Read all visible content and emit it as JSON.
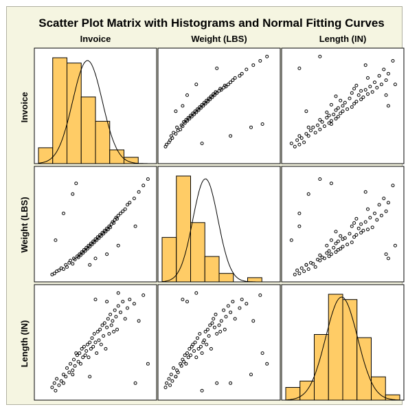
{
  "chart_data": {
    "type": "scatter",
    "title": "Scatter Plot Matrix with Histograms and Normal Fitting Curves",
    "variables": [
      "Invoice",
      "Weight (LBS)",
      "Length (IN)"
    ],
    "ranges": {
      "Invoice": [
        0,
        100
      ],
      "Weight (LBS)": [
        0,
        100
      ],
      "Length (IN)": [
        0,
        100
      ]
    },
    "colors": {
      "bar_fill": "#ffcc66",
      "bar_stroke": "#000000",
      "curve": "#000000",
      "point_stroke": "#000000",
      "background": "#f5f5e1"
    },
    "histograms": {
      "Invoice": {
        "bins": 8,
        "heights": [
          15,
          100,
          95,
          63,
          40,
          13,
          6,
          0
        ],
        "normal_mean": 43,
        "normal_sd": 13
      },
      "Weight (LBS)": {
        "bins": 8,
        "heights": [
          42,
          100,
          56,
          24,
          8,
          0,
          4,
          0
        ],
        "normal_mean": 38,
        "normal_sd": 11
      },
      "Length (IN)": {
        "bins": 8,
        "heights": [
          12,
          18,
          62,
          100,
          95,
          59,
          22,
          5
        ],
        "normal_mean": 49,
        "normal_sd": 14
      }
    },
    "points": [
      [
        12,
        3,
        8
      ],
      [
        14,
        4,
        12
      ],
      [
        16,
        6,
        16
      ],
      [
        18,
        7,
        10
      ],
      [
        20,
        9,
        14
      ],
      [
        22,
        8,
        20
      ],
      [
        24,
        12,
        18
      ],
      [
        25,
        10,
        26
      ],
      [
        27,
        14,
        22
      ],
      [
        28,
        16,
        30
      ],
      [
        30,
        13,
        24
      ],
      [
        31,
        18,
        34
      ],
      [
        32,
        17,
        28
      ],
      [
        34,
        20,
        38
      ],
      [
        35,
        19,
        32
      ],
      [
        36,
        22,
        40
      ],
      [
        37,
        21,
        30
      ],
      [
        38,
        24,
        44
      ],
      [
        39,
        23,
        36
      ],
      [
        40,
        26,
        46
      ],
      [
        41,
        25,
        38
      ],
      [
        42,
        28,
        42
      ],
      [
        43,
        27,
        48
      ],
      [
        44,
        30,
        36
      ],
      [
        45,
        29,
        50
      ],
      [
        46,
        32,
        44
      ],
      [
        47,
        31,
        54
      ],
      [
        48,
        34,
        46
      ],
      [
        49,
        33,
        58
      ],
      [
        50,
        36,
        50
      ],
      [
        51,
        35,
        40
      ],
      [
        52,
        38,
        60
      ],
      [
        53,
        37,
        52
      ],
      [
        54,
        40,
        62
      ],
      [
        55,
        39,
        48
      ],
      [
        56,
        42,
        66
      ],
      [
        57,
        41,
        56
      ],
      [
        58,
        44,
        68
      ],
      [
        59,
        43,
        44
      ],
      [
        60,
        46,
        64
      ],
      [
        61,
        45,
        72
      ],
      [
        62,
        48,
        58
      ],
      [
        63,
        47,
        76
      ],
      [
        64,
        50,
        66
      ],
      [
        65,
        52,
        70
      ],
      [
        66,
        51,
        60
      ],
      [
        67,
        54,
        80
      ],
      [
        68,
        56,
        74
      ],
      [
        69,
        55,
        62
      ],
      [
        70,
        58,
        84
      ],
      [
        72,
        60,
        78
      ],
      [
        74,
        62,
        88
      ],
      [
        76,
        64,
        72
      ],
      [
        78,
        68,
        82
      ],
      [
        80,
        70,
        90
      ],
      [
        84,
        74,
        86
      ],
      [
        88,
        80,
        70
      ],
      [
        92,
        86,
        94
      ],
      [
        96,
        92,
        30
      ],
      [
        30,
        78,
        20
      ],
      [
        22,
        60,
        12
      ],
      [
        50,
        18,
        90
      ],
      [
        45,
        12,
        18
      ],
      [
        70,
        30,
        96
      ],
      [
        60,
        22,
        88
      ],
      [
        85,
        48,
        12
      ],
      [
        33,
        88,
        40
      ],
      [
        15,
        35,
        5
      ]
    ]
  }
}
